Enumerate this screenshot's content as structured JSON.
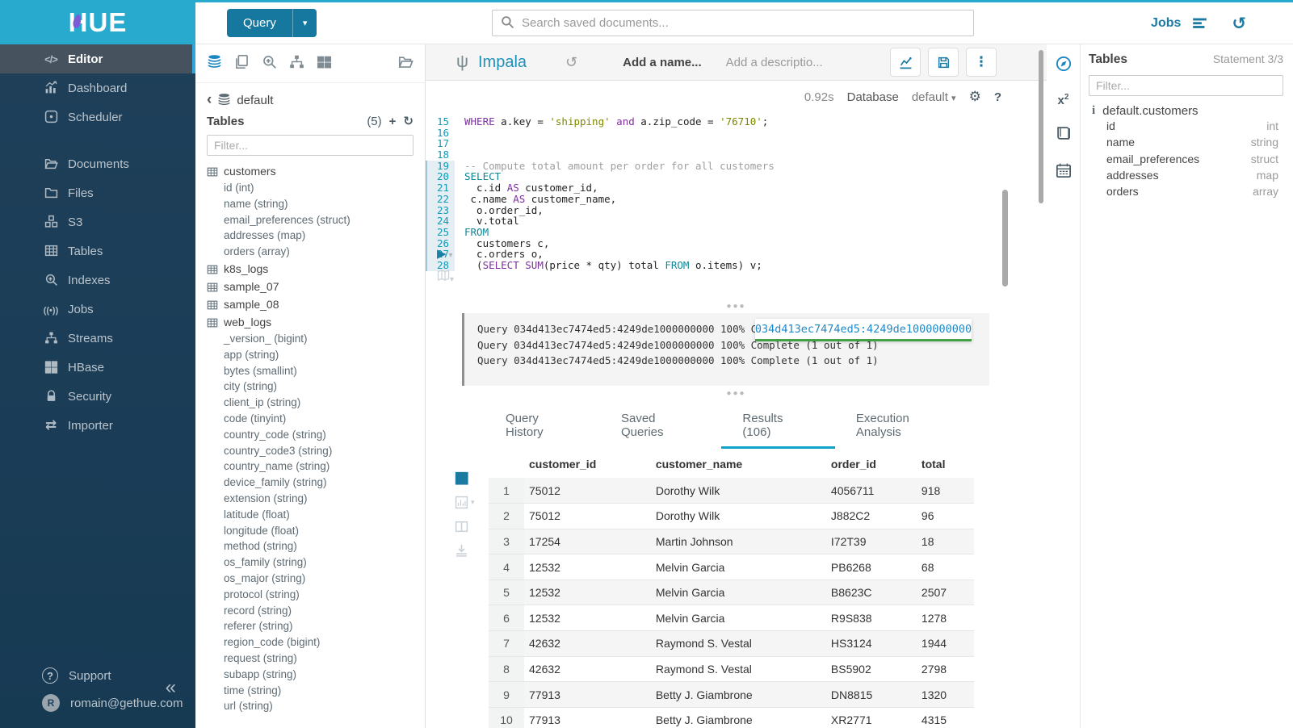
{
  "colors": {
    "brand_cyan": "#28a9ce",
    "link_blue": "#1b7aa2",
    "nav_bg": "#1d3c55",
    "active_tab_underline": "#0fa3c7",
    "keyword_purple": "#7d2fa0",
    "keyword_teal": "#0f8795",
    "string_olive": "#7d8600",
    "tooltip_green": "#43a047",
    "tooltip_blue": "#1e88c7"
  },
  "brand": {
    "logo_text": "HUE"
  },
  "topbar": {
    "query_button": {
      "label": "Query",
      "caret_icon": "caret-down-icon"
    },
    "search": {
      "icon": "search-icon",
      "placeholder": "Search saved documents..."
    },
    "jobs_label": "Jobs",
    "jobs_icon": "list-icon",
    "history_icon": "history-icon"
  },
  "left_nav": {
    "items": [
      {
        "label": "Editor",
        "icon": "code-icon",
        "active": true,
        "gap_after": false
      },
      {
        "label": "Dashboard",
        "icon": "dashboard-icon",
        "active": false,
        "gap_after": false
      },
      {
        "label": "Scheduler",
        "icon": "scheduler-icon",
        "active": false,
        "gap_after": true
      },
      {
        "label": "Documents",
        "icon": "documents-icon",
        "active": false,
        "gap_after": false
      },
      {
        "label": "Files",
        "icon": "files-icon",
        "active": false,
        "gap_after": false
      },
      {
        "label": "S3",
        "icon": "s3-icon",
        "active": false,
        "gap_after": false
      },
      {
        "label": "Tables",
        "icon": "tables-icon",
        "active": false,
        "gap_after": false
      },
      {
        "label": "Indexes",
        "icon": "indexes-icon",
        "active": false,
        "gap_after": false
      },
      {
        "label": "Jobs",
        "icon": "jobs-icon",
        "active": false,
        "gap_after": false
      },
      {
        "label": "Streams",
        "icon": "streams-icon",
        "active": false,
        "gap_after": false
      },
      {
        "label": "HBase",
        "icon": "hbase-icon",
        "active": false,
        "gap_after": false
      },
      {
        "label": "Security",
        "icon": "security-icon",
        "active": false,
        "gap_after": false
      },
      {
        "label": "Importer",
        "icon": "importer-icon",
        "active": false,
        "gap_after": false
      }
    ],
    "support_label": "Support",
    "support_icon": "question-circle-icon",
    "user_email": "romain@gethue.com",
    "avatar_initial": "R",
    "collapse_icon": "double-chevron-left-icon"
  },
  "assist": {
    "toolbar_icons": [
      {
        "name": "database-icon",
        "active": true,
        "right": false
      },
      {
        "name": "copy-documents-icon",
        "active": false,
        "right": false
      },
      {
        "name": "zoom-plus-icon",
        "active": false,
        "right": false
      },
      {
        "name": "sitemap-icon",
        "active": false,
        "right": false
      },
      {
        "name": "grid-icon",
        "active": false,
        "right": false
      },
      {
        "name": "folder-open-icon",
        "active": false,
        "right": true
      }
    ],
    "breadcrumb": {
      "back_icon": "chevron-left-icon",
      "db_icon": "database-icon",
      "label": "default"
    },
    "tables_header": {
      "title": "Tables",
      "count": "(5)",
      "add_icon": "plus-icon",
      "refresh_icon": "refresh-icon"
    },
    "filter_placeholder": "Filter...",
    "tree": [
      {
        "name": "customers",
        "icon": "table-icon",
        "columns": [
          "id (int)",
          "name (string)",
          "email_preferences (struct)",
          "addresses (map)",
          "orders (array)"
        ]
      },
      {
        "name": "k8s_logs",
        "icon": "table-icon",
        "columns": []
      },
      {
        "name": "sample_07",
        "icon": "table-icon",
        "columns": []
      },
      {
        "name": "sample_08",
        "icon": "table-icon",
        "columns": []
      },
      {
        "name": "web_logs",
        "icon": "table-icon",
        "columns": [
          "_version_ (bigint)",
          "app (string)",
          "bytes (smallint)",
          "city (string)",
          "client_ip (string)",
          "code (tinyint)",
          "country_code (string)",
          "country_code3 (string)",
          "country_name (string)",
          "device_family (string)",
          "extension (string)",
          "latitude (float)",
          "longitude (float)",
          "method (string)",
          "os_family (string)",
          "os_major (string)",
          "protocol (string)",
          "record (string)",
          "referer (string)",
          "region_code (bigint)",
          "request (string)",
          "subapp (string)",
          "time (string)",
          "url (string)",
          "user_agent (string)"
        ]
      }
    ]
  },
  "editor": {
    "engine": "Impala",
    "engine_icon": "impala-icon",
    "history_icon": "history-icon",
    "name_placeholder": "Add a name...",
    "desc_placeholder": "Add a descriptio...",
    "buttons": {
      "chart_icon": "line-chart-icon",
      "save_icon": "save-icon",
      "more_icon": "kebab-icon"
    },
    "exec_time": "0.92s",
    "database_label": "Database",
    "database_value": "default",
    "gear_icon": "gear-icon",
    "help_label": "?",
    "play_icon": "play-icon",
    "locate_icon": "map-icon",
    "lines": [
      {
        "n": 15,
        "tokens": [
          [
            "k",
            "WHERE"
          ],
          [
            "p",
            " a.key = "
          ],
          [
            "s",
            "'shipping'"
          ],
          [
            "p",
            " "
          ],
          [
            "k",
            "and"
          ],
          [
            "p",
            " a.zip_code = "
          ],
          [
            "s",
            "'76710'"
          ],
          [
            "p",
            ";"
          ]
        ]
      },
      {
        "n": 16,
        "tokens": []
      },
      {
        "n": 17,
        "tokens": []
      },
      {
        "n": 18,
        "tokens": []
      },
      {
        "n": 19,
        "tokens": [
          [
            "c",
            "-- Compute total amount per order for all customers"
          ]
        ]
      },
      {
        "n": 20,
        "tokens": [
          [
            "t",
            "SELECT"
          ]
        ]
      },
      {
        "n": 21,
        "tokens": [
          [
            "p",
            "  c.id "
          ],
          [
            "k",
            "AS"
          ],
          [
            "p",
            " customer_id,"
          ]
        ]
      },
      {
        "n": 22,
        "tokens": [
          [
            "p",
            " c.name "
          ],
          [
            "k",
            "AS"
          ],
          [
            "p",
            " customer_name,"
          ]
        ]
      },
      {
        "n": 23,
        "tokens": [
          [
            "p",
            "  o.order_id,"
          ]
        ]
      },
      {
        "n": 24,
        "tokens": [
          [
            "p",
            "  v.total"
          ]
        ]
      },
      {
        "n": 25,
        "tokens": [
          [
            "t",
            "FROM"
          ]
        ]
      },
      {
        "n": 26,
        "tokens": [
          [
            "p",
            "  customers c,"
          ]
        ]
      },
      {
        "n": 27,
        "tokens": [
          [
            "p",
            "  c.orders o,"
          ]
        ]
      },
      {
        "n": 28,
        "tokens": [
          [
            "p",
            "  ("
          ],
          [
            "k",
            "SELECT"
          ],
          [
            "p",
            " "
          ],
          [
            "k",
            "SUM"
          ],
          [
            "p",
            "(price * qty) total "
          ],
          [
            "t",
            "FROM"
          ],
          [
            "p",
            " o.items) v;"
          ]
        ]
      }
    ],
    "active_statement_from_line": 19
  },
  "logs": {
    "lines": [
      "Query 034d413ec7474ed5:4249de1000000000 100% Complete (1 out of 1)",
      "Query 034d413ec7474ed5:4249de1000000000 100% Complete (1 out of 1)",
      "Query 034d413ec7474ed5:4249de1000000000 100% Complete (1 out of 1)"
    ],
    "tooltip_text": "034d413ec7474ed5:4249de1000000000"
  },
  "tabs": {
    "items": [
      "Query History",
      "Saved Queries",
      "Results (106)",
      "Execution Analysis"
    ],
    "active_index": 2
  },
  "results": {
    "rail_icons": [
      {
        "name": "grid-table-icon",
        "active": true,
        "caret": false
      },
      {
        "name": "bar-chart-icon",
        "active": false,
        "caret": true
      },
      {
        "name": "columns-icon",
        "active": false,
        "caret": false
      },
      {
        "name": "download-icon",
        "active": false,
        "caret": false
      }
    ],
    "columns": [
      "customer_id",
      "customer_name",
      "order_id",
      "total"
    ],
    "rows": [
      [
        "1",
        "75012",
        "Dorothy Wilk",
        "4056711",
        "918"
      ],
      [
        "2",
        "75012",
        "Dorothy Wilk",
        "J882C2",
        "96"
      ],
      [
        "3",
        "17254",
        "Martin Johnson",
        "I72T39",
        "18"
      ],
      [
        "4",
        "12532",
        "Melvin Garcia",
        "PB6268",
        "68"
      ],
      [
        "5",
        "12532",
        "Melvin Garcia",
        "B8623C",
        "2507"
      ],
      [
        "6",
        "12532",
        "Melvin Garcia",
        "R9S838",
        "1278"
      ],
      [
        "7",
        "42632",
        "Raymond S. Vestal",
        "HS3124",
        "1944"
      ],
      [
        "8",
        "42632",
        "Raymond S. Vestal",
        "BS5902",
        "2798"
      ],
      [
        "9",
        "77913",
        "Betty J. Giambrone",
        "DN8815",
        "1320"
      ],
      [
        "10",
        "77913",
        "Betty J. Giambrone",
        "XR2771",
        "4315"
      ]
    ]
  },
  "right_strip": {
    "icons": [
      {
        "name": "compass-icon",
        "active": true
      },
      {
        "name": "functions-icon",
        "active": false
      },
      {
        "name": "book-icon",
        "active": false
      },
      {
        "name": "calendar-icon",
        "active": false
      }
    ]
  },
  "right_panel": {
    "title": "Tables",
    "statement": "Statement 3/3",
    "filter_placeholder": "Filter...",
    "info_icon": "info-icon",
    "table_name": "default.customers",
    "columns": [
      {
        "name": "id",
        "type": "int"
      },
      {
        "name": "name",
        "type": "string"
      },
      {
        "name": "email_preferences",
        "type": "struct"
      },
      {
        "name": "addresses",
        "type": "map"
      },
      {
        "name": "orders",
        "type": "array"
      }
    ]
  }
}
